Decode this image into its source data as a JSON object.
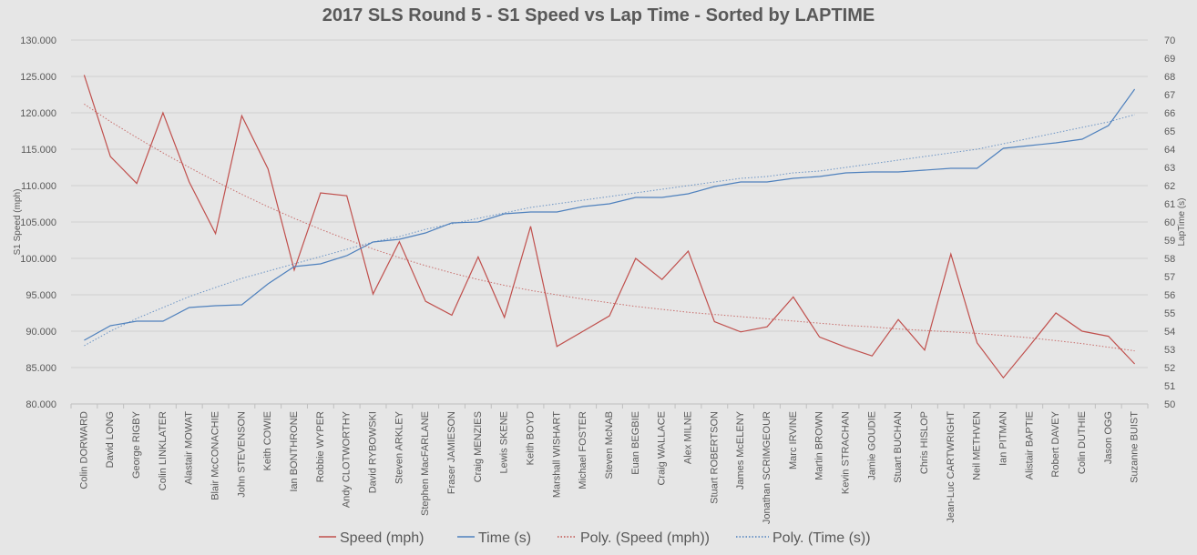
{
  "chart_data": {
    "type": "line",
    "title": "2017 SLS Round 5 - S1 Speed vs Lap Time - Sorted by LAPTIME",
    "ylabel": "S1 Speed (mph)",
    "y2label": "LapTime (s)",
    "ylim": [
      80,
      130
    ],
    "y2lim": [
      50,
      70
    ],
    "yticks": [
      "80.000",
      "85.000",
      "90.000",
      "95.000",
      "100.000",
      "105.000",
      "110.000",
      "115.000",
      "120.000",
      "125.000",
      "130.000"
    ],
    "y2ticks": [
      "50",
      "51",
      "52",
      "53",
      "54",
      "55",
      "56",
      "57",
      "58",
      "59",
      "60",
      "61",
      "62",
      "63",
      "64",
      "65",
      "66",
      "67",
      "68",
      "69",
      "70"
    ],
    "grid": true,
    "legend_position": "bottom",
    "categories": [
      "Colin DORWARD",
      "David LONG",
      "George RIGBY",
      "Colin LINKLATER",
      "Alastair MOWAT",
      "Blair McCONACHIE",
      "John STEVENSON",
      "Keith COWIE",
      "Ian BONTHRONE",
      "Robbie WYPER",
      "Andy CLOTWORTHY",
      "David RYBOWSKI",
      "Steven ARKLEY",
      "Stephen MacFARLANE",
      "Fraser JAMIESON",
      "Craig MENZIES",
      "Lewis SKENE",
      "Keith BOYD",
      "Marshall WISHART",
      "Michael FOSTER",
      "Steven McNAB",
      "Euan BEGBIE",
      "Craig WALLACE",
      "Alex MILNE",
      "Stuart ROBERTSON",
      "James McELENY",
      "Jonathan SCRIMGEOUR",
      "Marc IRVINE",
      "Martin BROWN",
      "Kevin STRACHAN",
      "Jamie GOUDIE",
      "Stuart BUCHAN",
      "Chris HISLOP",
      "Jean-Luc CARTWRIGHT",
      "Neil METHVEN",
      "Ian PITMAN",
      "Alistair BAPTIE",
      "Robert DAVEY",
      "Colin DUTHIE",
      "Jason OGG",
      "Suzanne BUIST"
    ],
    "series": [
      {
        "name": "Speed (mph)",
        "axis": "left",
        "color": "#c0504d",
        "style": "solid",
        "values": [
          125.2,
          114.0,
          110.3,
          120.0,
          110.5,
          103.4,
          119.6,
          112.3,
          98.4,
          109.0,
          108.6,
          95.1,
          102.3,
          94.1,
          92.2,
          100.2,
          91.9,
          104.4,
          87.9,
          90.0,
          92.1,
          100.0,
          97.1,
          101.0,
          91.3,
          89.9,
          90.6,
          94.7,
          89.2,
          87.8,
          86.6,
          91.6,
          87.4,
          100.6,
          88.4,
          83.6,
          88.0,
          92.5,
          90.0,
          89.3,
          85.5
        ]
      },
      {
        "name": "Time (s)",
        "axis": "right",
        "color": "#4f81bd",
        "style": "solid",
        "values": [
          53.5,
          54.3,
          54.55,
          54.55,
          55.3,
          55.4,
          55.45,
          56.6,
          57.55,
          57.7,
          58.15,
          58.9,
          59.05,
          59.4,
          59.95,
          60.0,
          60.45,
          60.55,
          60.55,
          60.85,
          61.0,
          61.35,
          61.35,
          61.55,
          61.95,
          62.2,
          62.2,
          62.4,
          62.5,
          62.7,
          62.75,
          62.75,
          62.85,
          62.95,
          62.95,
          64.05,
          64.2,
          64.35,
          64.55,
          65.3,
          67.3
        ]
      },
      {
        "name": "Poly. (Speed (mph))",
        "axis": "left",
        "color": "#c0504d",
        "style": "dotted",
        "values": [
          121.2,
          118.8,
          116.6,
          114.5,
          112.5,
          110.6,
          108.8,
          107.1,
          105.5,
          104.0,
          102.6,
          101.3,
          100.1,
          99.0,
          98.0,
          97.1,
          96.3,
          95.6,
          95.0,
          94.4,
          93.9,
          93.4,
          93.0,
          92.6,
          92.3,
          92.0,
          91.7,
          91.4,
          91.1,
          90.8,
          90.6,
          90.3,
          90.1,
          89.9,
          89.7,
          89.4,
          89.1,
          88.7,
          88.3,
          87.8,
          87.3
        ]
      },
      {
        "name": "Poly. (Time (s))",
        "axis": "right",
        "color": "#4f81bd",
        "style": "dotted",
        "values": [
          53.2,
          54.0,
          54.7,
          55.3,
          55.9,
          56.4,
          56.9,
          57.3,
          57.7,
          58.1,
          58.5,
          58.9,
          59.2,
          59.6,
          59.9,
          60.2,
          60.5,
          60.8,
          61.0,
          61.2,
          61.4,
          61.6,
          61.8,
          62.0,
          62.2,
          62.4,
          62.5,
          62.7,
          62.8,
          63.0,
          63.2,
          63.4,
          63.6,
          63.8,
          64.0,
          64.3,
          64.6,
          64.9,
          65.2,
          65.5,
          65.9
        ]
      }
    ]
  }
}
